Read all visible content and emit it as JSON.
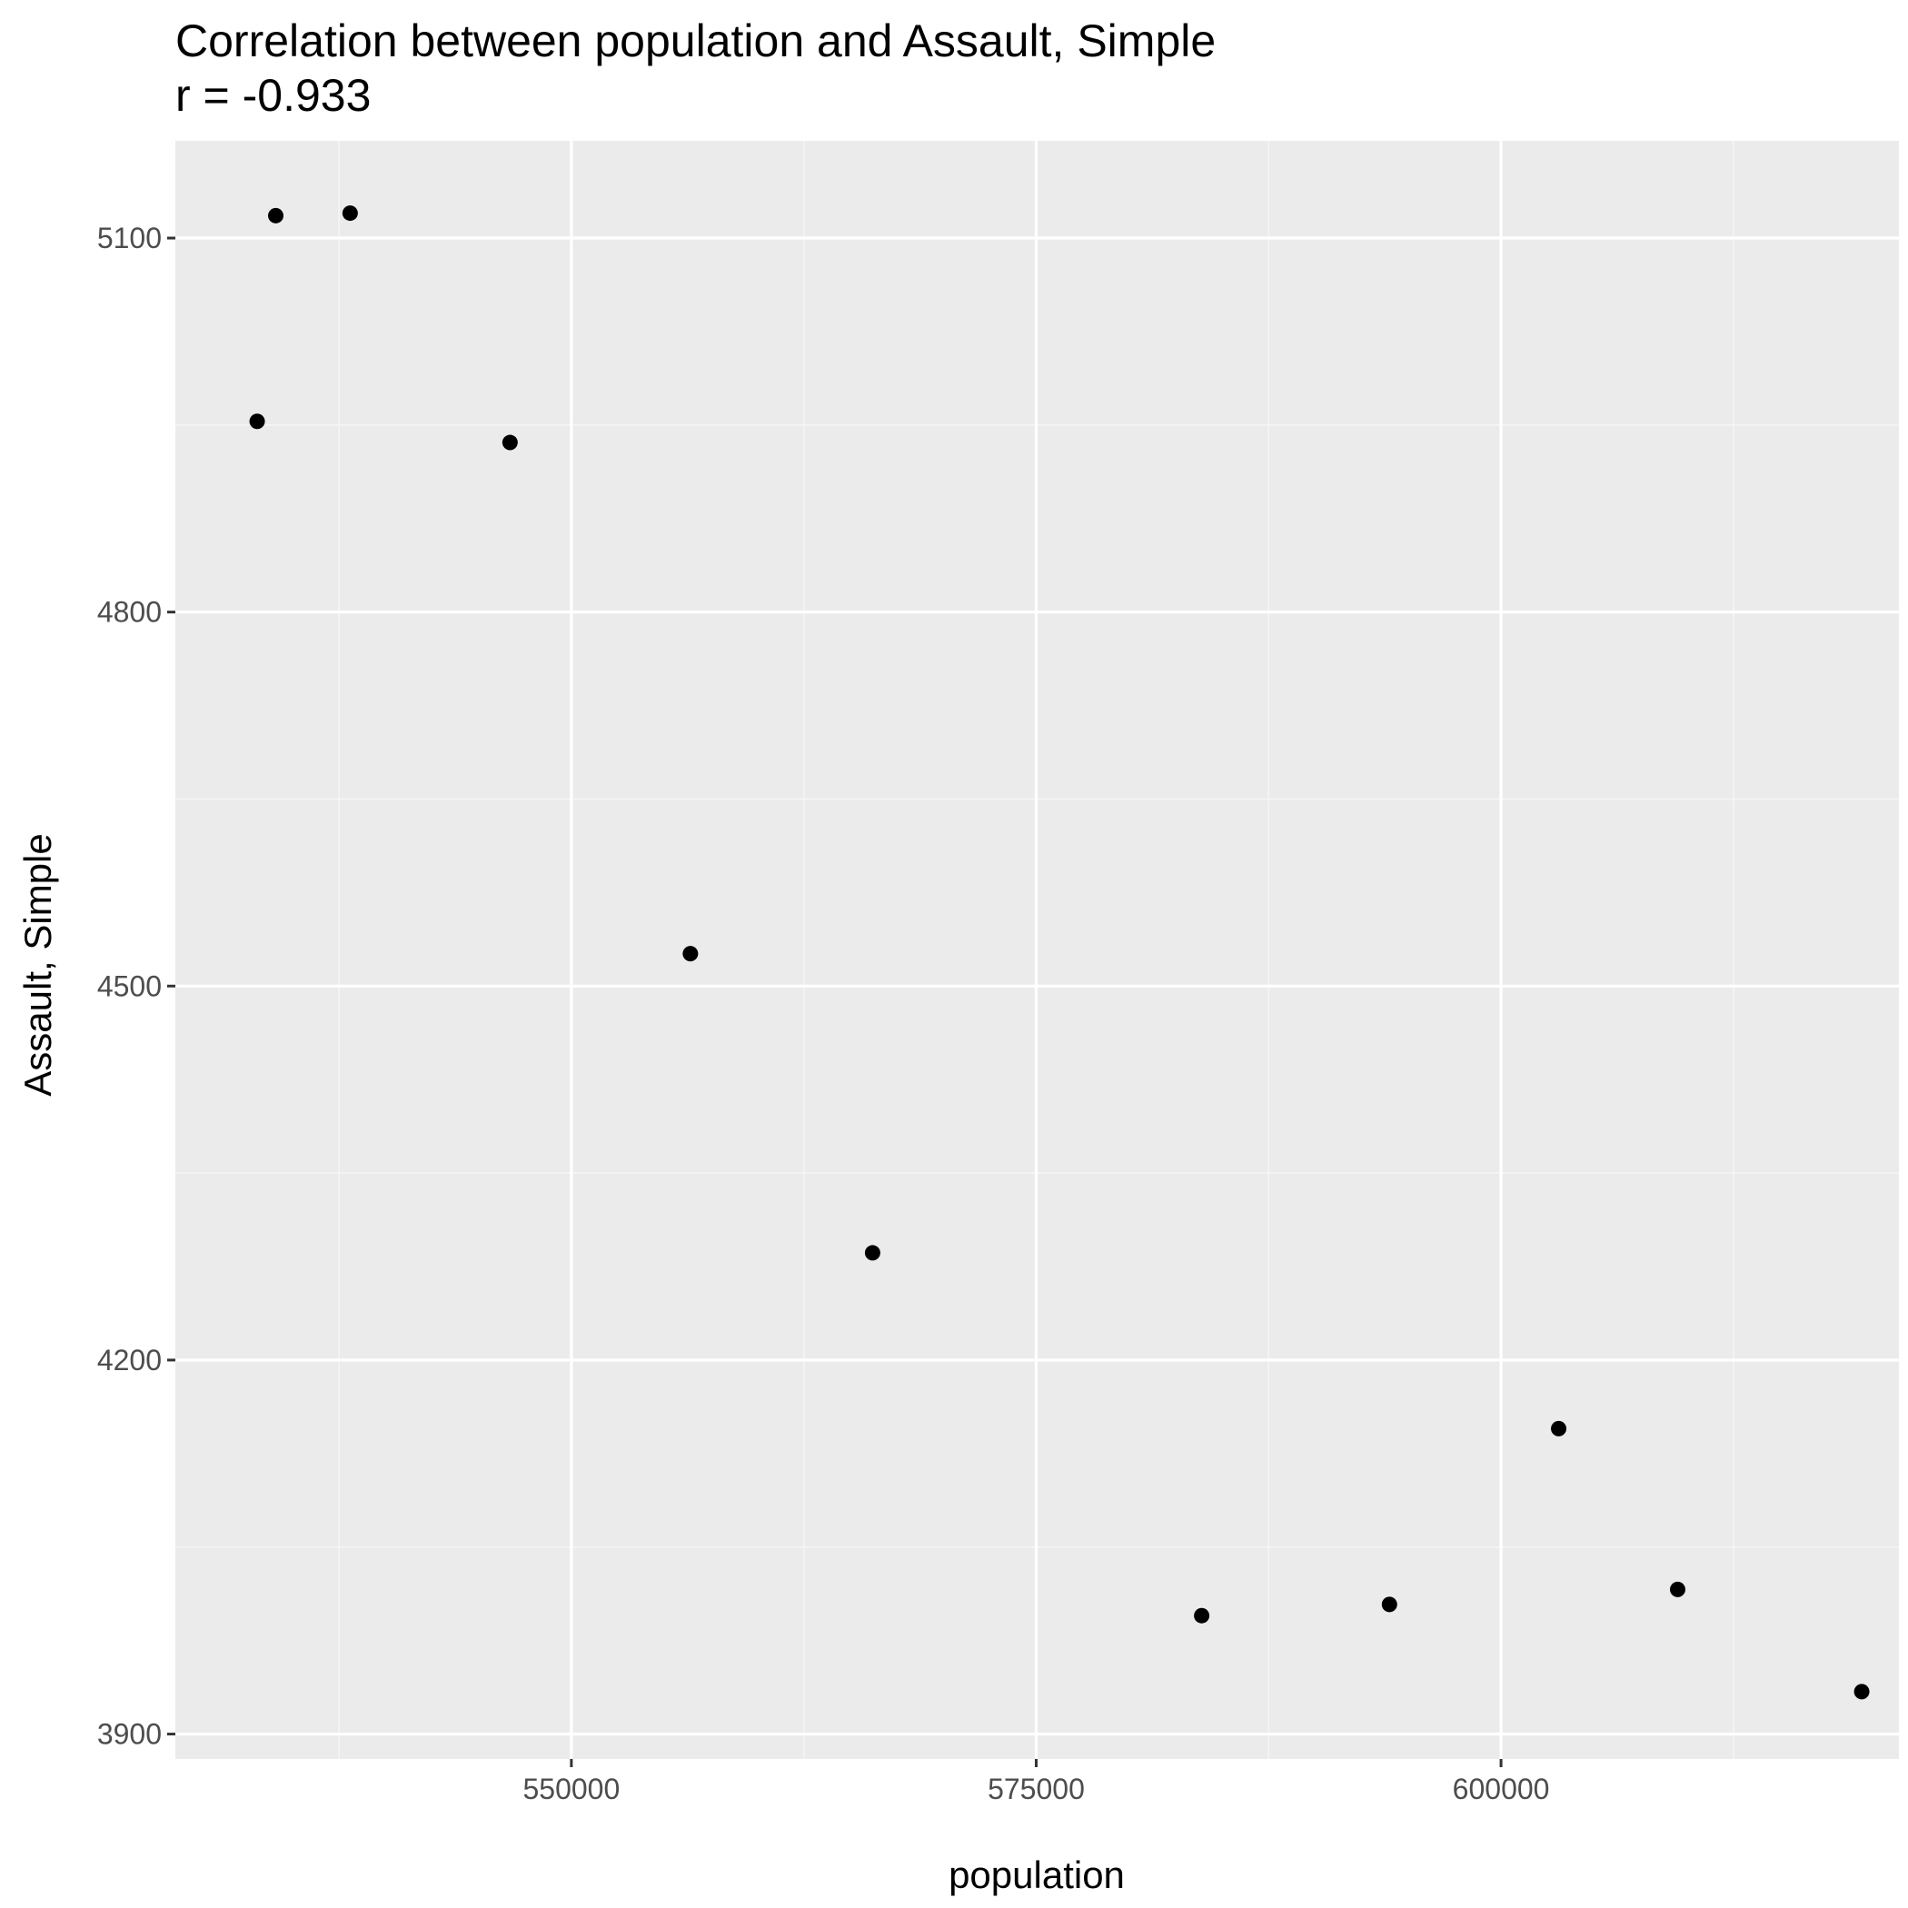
{
  "chart_data": {
    "type": "scatter",
    "title": "Correlation between population and Assault, Simple",
    "subtitle": "r = -0.933",
    "xlabel": "population",
    "ylabel": "Assault, Simple",
    "xlim": [
      528700,
      621400
    ],
    "ylim": [
      3880,
      5178
    ],
    "xticks": [
      550000,
      575000,
      600000
    ],
    "xtick_labels": [
      "550000",
      "575000",
      "600000"
    ],
    "yticks": [
      3900,
      4200,
      4500,
      4800,
      5100
    ],
    "ytick_labels": [
      "3900",
      "4200",
      "4500",
      "4800",
      "5100"
    ],
    "grid": true,
    "points": [
      {
        "x": 533100,
        "y": 4953
      },
      {
        "x": 534100,
        "y": 5118
      },
      {
        "x": 538100,
        "y": 5120
      },
      {
        "x": 546700,
        "y": 4936
      },
      {
        "x": 556400,
        "y": 4526
      },
      {
        "x": 566200,
        "y": 4286
      },
      {
        "x": 583900,
        "y": 3995
      },
      {
        "x": 594000,
        "y": 4004
      },
      {
        "x": 603100,
        "y": 4145
      },
      {
        "x": 609500,
        "y": 4016
      },
      {
        "x": 619400,
        "y": 3934
      }
    ],
    "colors": {
      "panel_background": "#ebebeb",
      "grid_major": "#ffffff",
      "grid_minor": "#f5f5f5",
      "point": "#000000",
      "tick_text": "#4d4d4d",
      "tick_mark": "#333333"
    }
  }
}
